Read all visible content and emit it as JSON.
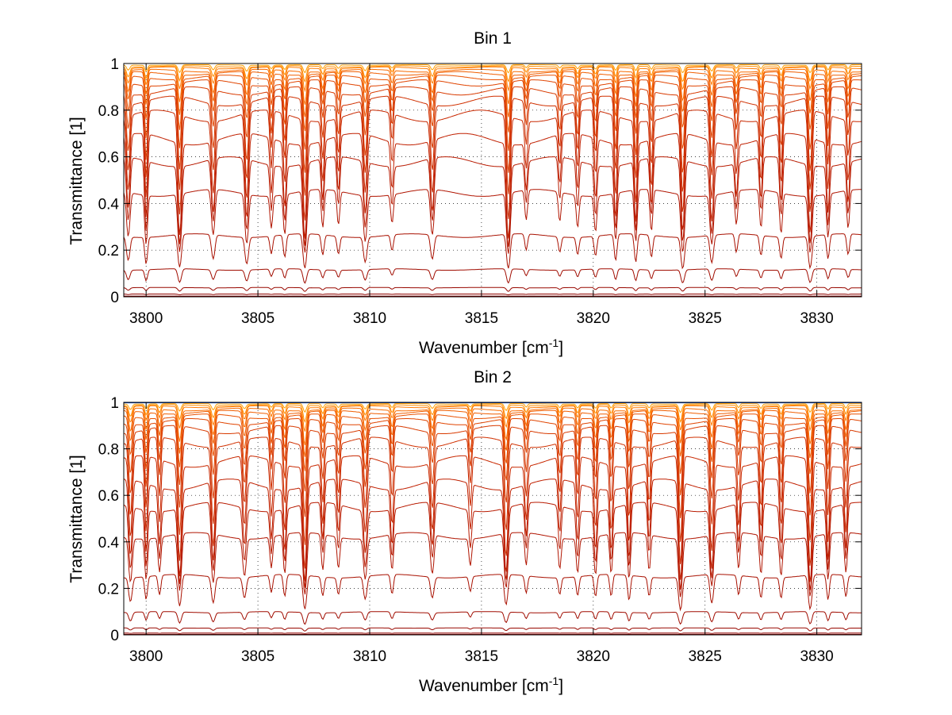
{
  "chart_data": [
    {
      "type": "line",
      "title": "Bin 1",
      "xlabel": "Wavenumber [cm",
      "xlabel_sup": "-1",
      "xlabel_tail": "]",
      "ylabel": "Transmittance [1]",
      "xlim": [
        3799,
        3832
      ],
      "ylim": [
        0,
        1
      ],
      "xticks": [
        3800,
        3805,
        3810,
        3815,
        3820,
        3825,
        3830
      ],
      "yticks": [
        0,
        0.2,
        0.4,
        0.6,
        0.8,
        1
      ],
      "grid": "dotted",
      "line_families": [
        {
          "baseline": 0.995,
          "depth": 0.02,
          "color": "#ff9f00"
        },
        {
          "baseline": 0.99,
          "depth": 0.04,
          "color": "#ff8c00"
        },
        {
          "baseline": 0.985,
          "depth": 0.06,
          "color": "#ff7a00"
        },
        {
          "baseline": 0.975,
          "depth": 0.09,
          "color": "#f86a00"
        },
        {
          "baseline": 0.965,
          "depth": 0.12,
          "color": "#f05e00"
        },
        {
          "baseline": 0.95,
          "depth": 0.16,
          "color": "#e85000"
        },
        {
          "baseline": 0.93,
          "depth": 0.22,
          "color": "#e04400"
        },
        {
          "baseline": 0.9,
          "depth": 0.3,
          "color": "#d83a00"
        },
        {
          "baseline": 0.86,
          "depth": 0.38,
          "color": "#d03000"
        },
        {
          "baseline": 0.8,
          "depth": 0.48,
          "color": "#c82800"
        },
        {
          "baseline": 0.7,
          "depth": 0.55,
          "color": "#c02000"
        },
        {
          "baseline": 0.6,
          "depth": 0.55,
          "color": "#b81a00"
        },
        {
          "baseline": 0.46,
          "depth": 0.5,
          "color": "#b01400"
        },
        {
          "baseline": 0.27,
          "depth": 0.45,
          "color": "#a81000"
        },
        {
          "baseline": 0.12,
          "depth": 0.4,
          "color": "#a00c00"
        },
        {
          "baseline": 0.04,
          "depth": 0.3,
          "color": "#980800"
        },
        {
          "baseline": 0.012,
          "depth": 0.2,
          "color": "#900400"
        },
        {
          "baseline": 0.003,
          "depth": 0.1,
          "color": "#880000"
        }
      ],
      "absorption_lines": [
        [
          3799.2,
          0.5,
          0.1
        ],
        [
          3800.0,
          0.6,
          0.08
        ],
        [
          3801.5,
          0.75,
          0.1
        ],
        [
          3803.0,
          0.5,
          0.1
        ],
        [
          3804.5,
          0.6,
          0.1
        ],
        [
          3805.6,
          0.35,
          0.08
        ],
        [
          3806.2,
          0.45,
          0.08
        ],
        [
          3807.1,
          0.8,
          0.1
        ],
        [
          3807.9,
          0.4,
          0.08
        ],
        [
          3808.6,
          0.35,
          0.08
        ],
        [
          3809.8,
          0.55,
          0.1
        ],
        [
          3811.0,
          0.3,
          0.08
        ],
        [
          3812.8,
          0.5,
          0.1
        ],
        [
          3816.2,
          0.8,
          0.1
        ],
        [
          3817.0,
          0.3,
          0.08
        ],
        [
          3818.5,
          0.3,
          0.08
        ],
        [
          3819.3,
          0.35,
          0.08
        ],
        [
          3820.1,
          0.4,
          0.08
        ],
        [
          3821.0,
          0.55,
          0.08
        ],
        [
          3821.9,
          0.6,
          0.08
        ],
        [
          3822.6,
          0.45,
          0.08
        ],
        [
          3824.0,
          0.75,
          0.1
        ],
        [
          3825.3,
          0.6,
          0.1
        ],
        [
          3826.4,
          0.35,
          0.08
        ],
        [
          3827.5,
          0.4,
          0.08
        ],
        [
          3828.4,
          0.45,
          0.08
        ],
        [
          3829.7,
          0.75,
          0.1
        ],
        [
          3830.5,
          0.5,
          0.08
        ],
        [
          3831.4,
          0.4,
          0.08
        ]
      ]
    },
    {
      "type": "line",
      "title": "Bin 2",
      "xlabel": "Wavenumber [cm",
      "xlabel_sup": "-1",
      "xlabel_tail": "]",
      "ylabel": "Transmittance [1]",
      "xlim": [
        3799,
        3832
      ],
      "ylim": [
        0,
        1
      ],
      "xticks": [
        3800,
        3805,
        3810,
        3815,
        3820,
        3825,
        3830
      ],
      "yticks": [
        0,
        0.2,
        0.4,
        0.6,
        0.8,
        1
      ],
      "grid": "dotted",
      "line_families": [
        {
          "baseline": 0.998,
          "depth": 0.0,
          "color": "#0040c0"
        },
        {
          "baseline": 0.995,
          "depth": 0.02,
          "color": "#ff9f00"
        },
        {
          "baseline": 0.99,
          "depth": 0.04,
          "color": "#ff8c00"
        },
        {
          "baseline": 0.985,
          "depth": 0.06,
          "color": "#ff7a00"
        },
        {
          "baseline": 0.975,
          "depth": 0.09,
          "color": "#f86a00"
        },
        {
          "baseline": 0.965,
          "depth": 0.12,
          "color": "#f05e00"
        },
        {
          "baseline": 0.95,
          "depth": 0.16,
          "color": "#e85000"
        },
        {
          "baseline": 0.93,
          "depth": 0.22,
          "color": "#e04400"
        },
        {
          "baseline": 0.9,
          "depth": 0.3,
          "color": "#d83a00"
        },
        {
          "baseline": 0.85,
          "depth": 0.4,
          "color": "#d03000"
        },
        {
          "baseline": 0.77,
          "depth": 0.5,
          "color": "#c82800"
        },
        {
          "baseline": 0.67,
          "depth": 0.55,
          "color": "#c02000"
        },
        {
          "baseline": 0.57,
          "depth": 0.55,
          "color": "#b81a00"
        },
        {
          "baseline": 0.44,
          "depth": 0.5,
          "color": "#b01400"
        },
        {
          "baseline": 0.26,
          "depth": 0.45,
          "color": "#a81000"
        },
        {
          "baseline": 0.1,
          "depth": 0.4,
          "color": "#a00c00"
        },
        {
          "baseline": 0.03,
          "depth": 0.3,
          "color": "#980800"
        },
        {
          "baseline": 0.008,
          "depth": 0.2,
          "color": "#900400"
        },
        {
          "baseline": 0.002,
          "depth": 0.1,
          "color": "#880000"
        }
      ],
      "absorption_lines": [
        [
          3799.3,
          0.55,
          0.1
        ],
        [
          3800.0,
          0.5,
          0.08
        ],
        [
          3800.6,
          0.4,
          0.08
        ],
        [
          3801.5,
          0.75,
          0.1
        ],
        [
          3803.0,
          0.6,
          0.1
        ],
        [
          3804.4,
          0.45,
          0.1
        ],
        [
          3805.6,
          0.35,
          0.08
        ],
        [
          3806.2,
          0.45,
          0.08
        ],
        [
          3807.1,
          0.85,
          0.1
        ],
        [
          3807.9,
          0.4,
          0.08
        ],
        [
          3808.6,
          0.35,
          0.08
        ],
        [
          3809.8,
          0.5,
          0.1
        ],
        [
          3811.0,
          0.4,
          0.08
        ],
        [
          3812.8,
          0.45,
          0.1
        ],
        [
          3814.5,
          0.3,
          0.08
        ],
        [
          3816.1,
          0.7,
          0.1
        ],
        [
          3817.0,
          0.35,
          0.08
        ],
        [
          3818.5,
          0.35,
          0.08
        ],
        [
          3819.3,
          0.4,
          0.08
        ],
        [
          3820.1,
          0.45,
          0.08
        ],
        [
          3820.8,
          0.45,
          0.08
        ],
        [
          3821.6,
          0.55,
          0.08
        ],
        [
          3822.5,
          0.4,
          0.08
        ],
        [
          3823.9,
          0.85,
          0.1
        ],
        [
          3825.3,
          0.65,
          0.1
        ],
        [
          3826.5,
          0.4,
          0.08
        ],
        [
          3827.5,
          0.45,
          0.08
        ],
        [
          3828.4,
          0.45,
          0.08
        ],
        [
          3829.7,
          0.85,
          0.1
        ],
        [
          3830.5,
          0.55,
          0.08
        ],
        [
          3831.3,
          0.45,
          0.08
        ]
      ]
    }
  ]
}
